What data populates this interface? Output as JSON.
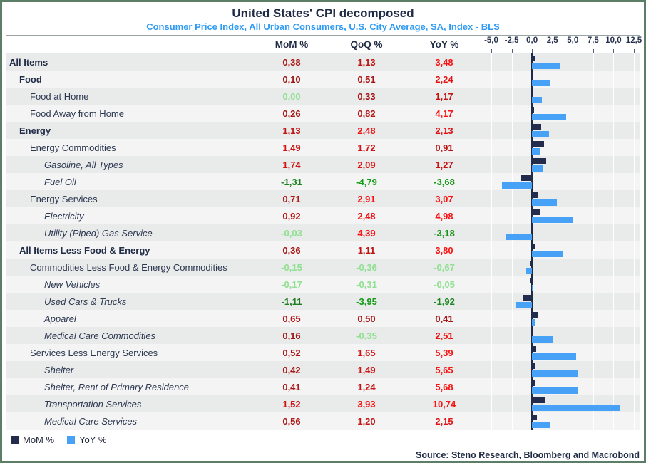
{
  "title": "United States' CPI decomposed",
  "subtitle": "Consumer Price Index, All Urban Consumers, U.S. City Average, SA, Index - BLS",
  "source": "Source: Steno Research, Bloomberg and Macrobond",
  "columns": {
    "mom": "MoM %",
    "qoq": "QoQ %",
    "yoy": "YoY %"
  },
  "legend": [
    {
      "label": "MoM %",
      "color": "#232c4c"
    },
    {
      "label": "YoY %",
      "color": "#47a2f7"
    }
  ],
  "colors": {
    "frame_border": "#5c7d66",
    "bar_mom": "#232c4c",
    "bar_yoy": "#47a2f7",
    "positive_low": "#9b1616",
    "positive_high": "#fb1111",
    "negative_soft": "#8fe08f",
    "negative_low": "#1e7d1e",
    "negative_high": "#12a012",
    "stripe_dark": "#e9eaea",
    "stripe_light": "#f4f4f4",
    "zero_line": "#1f2b44"
  },
  "chart_data": {
    "type": "bar",
    "orientation": "horizontal",
    "title": "United States' CPI decomposed",
    "series_plotted": [
      "MoM %",
      "YoY %"
    ],
    "axis_tick_labels": [
      "-5,0",
      "-2,5",
      "0,0",
      "2,5",
      "5,0",
      "7,5",
      "10,0",
      "12,5"
    ],
    "axis_tick_values": [
      -5,
      -2.5,
      0,
      2.5,
      5,
      7.5,
      10,
      12.5
    ],
    "xlim": [
      -6.05,
      13.2
    ],
    "rows": [
      {
        "label": "All Items",
        "level": 0,
        "bold": true,
        "italic": false,
        "mom": "0,38",
        "qoq": "1,13",
        "yoy": "3,48"
      },
      {
        "label": "Food",
        "level": 1,
        "bold": true,
        "italic": false,
        "mom": "0,10",
        "qoq": "0,51",
        "yoy": "2,24"
      },
      {
        "label": "Food at Home",
        "level": 2,
        "bold": false,
        "italic": false,
        "mom": "0,00",
        "qoq": "0,33",
        "yoy": "1,17"
      },
      {
        "label": "Food Away from Home",
        "level": 2,
        "bold": false,
        "italic": false,
        "mom": "0,26",
        "qoq": "0,82",
        "yoy": "4,17"
      },
      {
        "label": "Energy",
        "level": 1,
        "bold": true,
        "italic": false,
        "mom": "1,13",
        "qoq": "2,48",
        "yoy": "2,13"
      },
      {
        "label": "Energy Commodities",
        "level": 2,
        "bold": false,
        "italic": false,
        "mom": "1,49",
        "qoq": "1,72",
        "yoy": "0,91"
      },
      {
        "label": "Gasoline, All Types",
        "level": 3,
        "bold": false,
        "italic": true,
        "mom": "1,74",
        "qoq": "2,09",
        "yoy": "1,27"
      },
      {
        "label": "Fuel Oil",
        "level": 3,
        "bold": false,
        "italic": true,
        "mom": "-1,31",
        "qoq": "-4,79",
        "yoy": "-3,68"
      },
      {
        "label": "Energy Services",
        "level": 2,
        "bold": false,
        "italic": false,
        "mom": "0,71",
        "qoq": "2,91",
        "yoy": "3,07"
      },
      {
        "label": "Electricity",
        "level": 3,
        "bold": false,
        "italic": true,
        "mom": "0,92",
        "qoq": "2,48",
        "yoy": "4,98"
      },
      {
        "label": "Utility (Piped) Gas Service",
        "level": 3,
        "bold": false,
        "italic": true,
        "mom": "-0,03",
        "qoq": "4,39",
        "yoy": "-3,18"
      },
      {
        "label": "All Items Less Food & Energy",
        "level": 1,
        "bold": true,
        "italic": false,
        "mom": "0,36",
        "qoq": "1,11",
        "yoy": "3,80"
      },
      {
        "label": "Commodities Less Food & Energy Commodities",
        "level": 2,
        "bold": false,
        "italic": false,
        "mom": "-0,15",
        "qoq": "-0,36",
        "yoy": "-0,67"
      },
      {
        "label": "New Vehicles",
        "level": 3,
        "bold": false,
        "italic": true,
        "mom": "-0,17",
        "qoq": "-0,31",
        "yoy": "-0,05"
      },
      {
        "label": "Used Cars & Trucks",
        "level": 3,
        "bold": false,
        "italic": true,
        "mom": "-1,11",
        "qoq": "-3,95",
        "yoy": "-1,92"
      },
      {
        "label": "Apparel",
        "level": 3,
        "bold": false,
        "italic": true,
        "mom": "0,65",
        "qoq": "0,50",
        "yoy": "0,41"
      },
      {
        "label": "Medical Care Commodities",
        "level": 3,
        "bold": false,
        "italic": true,
        "mom": "0,16",
        "qoq": "-0,35",
        "yoy": "2,51"
      },
      {
        "label": "Services Less Energy Services",
        "level": 2,
        "bold": false,
        "italic": false,
        "mom": "0,52",
        "qoq": "1,65",
        "yoy": "5,39"
      },
      {
        "label": "Shelter",
        "level": 3,
        "bold": false,
        "italic": true,
        "mom": "0,42",
        "qoq": "1,49",
        "yoy": "5,65"
      },
      {
        "label": "Shelter, Rent of Primary Residence",
        "level": 3,
        "bold": false,
        "italic": true,
        "mom": "0,41",
        "qoq": "1,24",
        "yoy": "5,68"
      },
      {
        "label": "Transportation Services",
        "level": 3,
        "bold": false,
        "italic": true,
        "mom": "1,52",
        "qoq": "3,93",
        "yoy": "10,74"
      },
      {
        "label": "Medical Care Services",
        "level": 3,
        "bold": false,
        "italic": true,
        "mom": "0,56",
        "qoq": "1,20",
        "yoy": "2,15"
      }
    ]
  }
}
